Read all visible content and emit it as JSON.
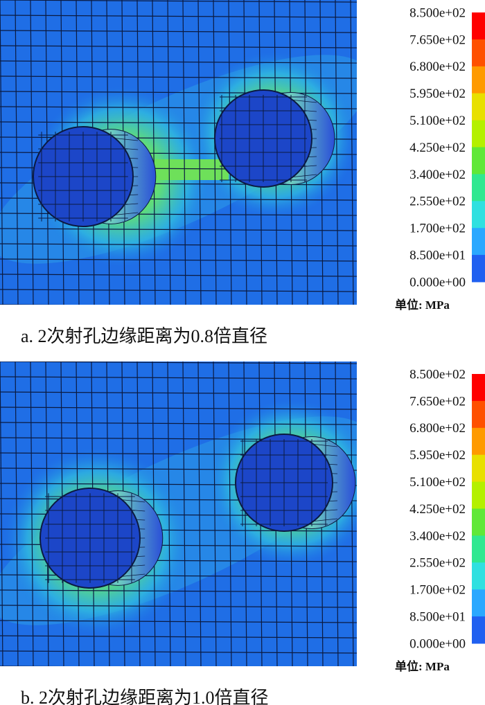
{
  "panels": [
    {
      "legend_labels": [
        "8.500e+02",
        "7.650e+02",
        "6.800e+02",
        "5.950e+02",
        "5.100e+02",
        "4.250e+02",
        "3.400e+02",
        "2.550e+02",
        "1.700e+02",
        "8.500e+01",
        "0.000e+00"
      ],
      "unit_label": "单位: MPa",
      "caption": "a. 2次射孔边缘距离为0.8倍直径"
    },
    {
      "legend_labels": [
        "8.500e+02",
        "7.650e+02",
        "6.800e+02",
        "5.950e+02",
        "5.100e+02",
        "4.250e+02",
        "3.400e+02",
        "2.550e+02",
        "1.700e+02",
        "8.500e+01",
        "0.000e+00"
      ],
      "unit_label": "单位: MPa",
      "caption": "b. 2次射孔边缘距离为1.0倍直径"
    }
  ]
}
